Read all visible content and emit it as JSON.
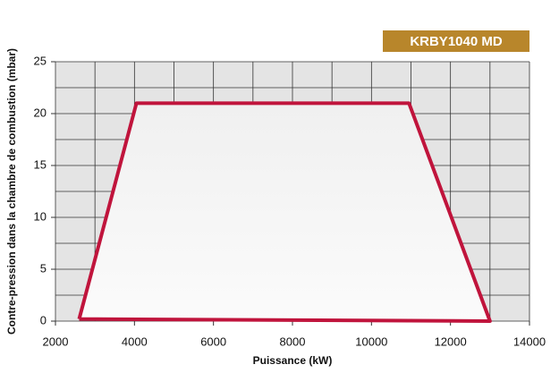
{
  "chart_data": {
    "type": "line",
    "badge": "KRBY1040 MD",
    "x_label": "Puissance (kW)",
    "y_label": "Contre-pression dans la chambre de combustion (mbar)",
    "series": [
      {
        "color": "#c0143c",
        "x": [
          2600,
          4050,
          10950,
          13000,
          2600
        ],
        "values": [
          0.2,
          21,
          21,
          0,
          0.2
        ]
      }
    ],
    "xlim": [
      2000,
      14000
    ],
    "xticks": [
      2000,
      4000,
      6000,
      8000,
      10000,
      12000,
      14000
    ],
    "xminor_ticks": [
      3000,
      5000,
      7000,
      9000,
      11000,
      13000
    ],
    "ylim": [
      0,
      25
    ],
    "yticks": [
      0,
      5,
      10,
      15,
      20,
      25
    ],
    "yminor_ticks": [
      2.5,
      7.5,
      12.5,
      17.5,
      22.5
    ],
    "grid": true
  }
}
